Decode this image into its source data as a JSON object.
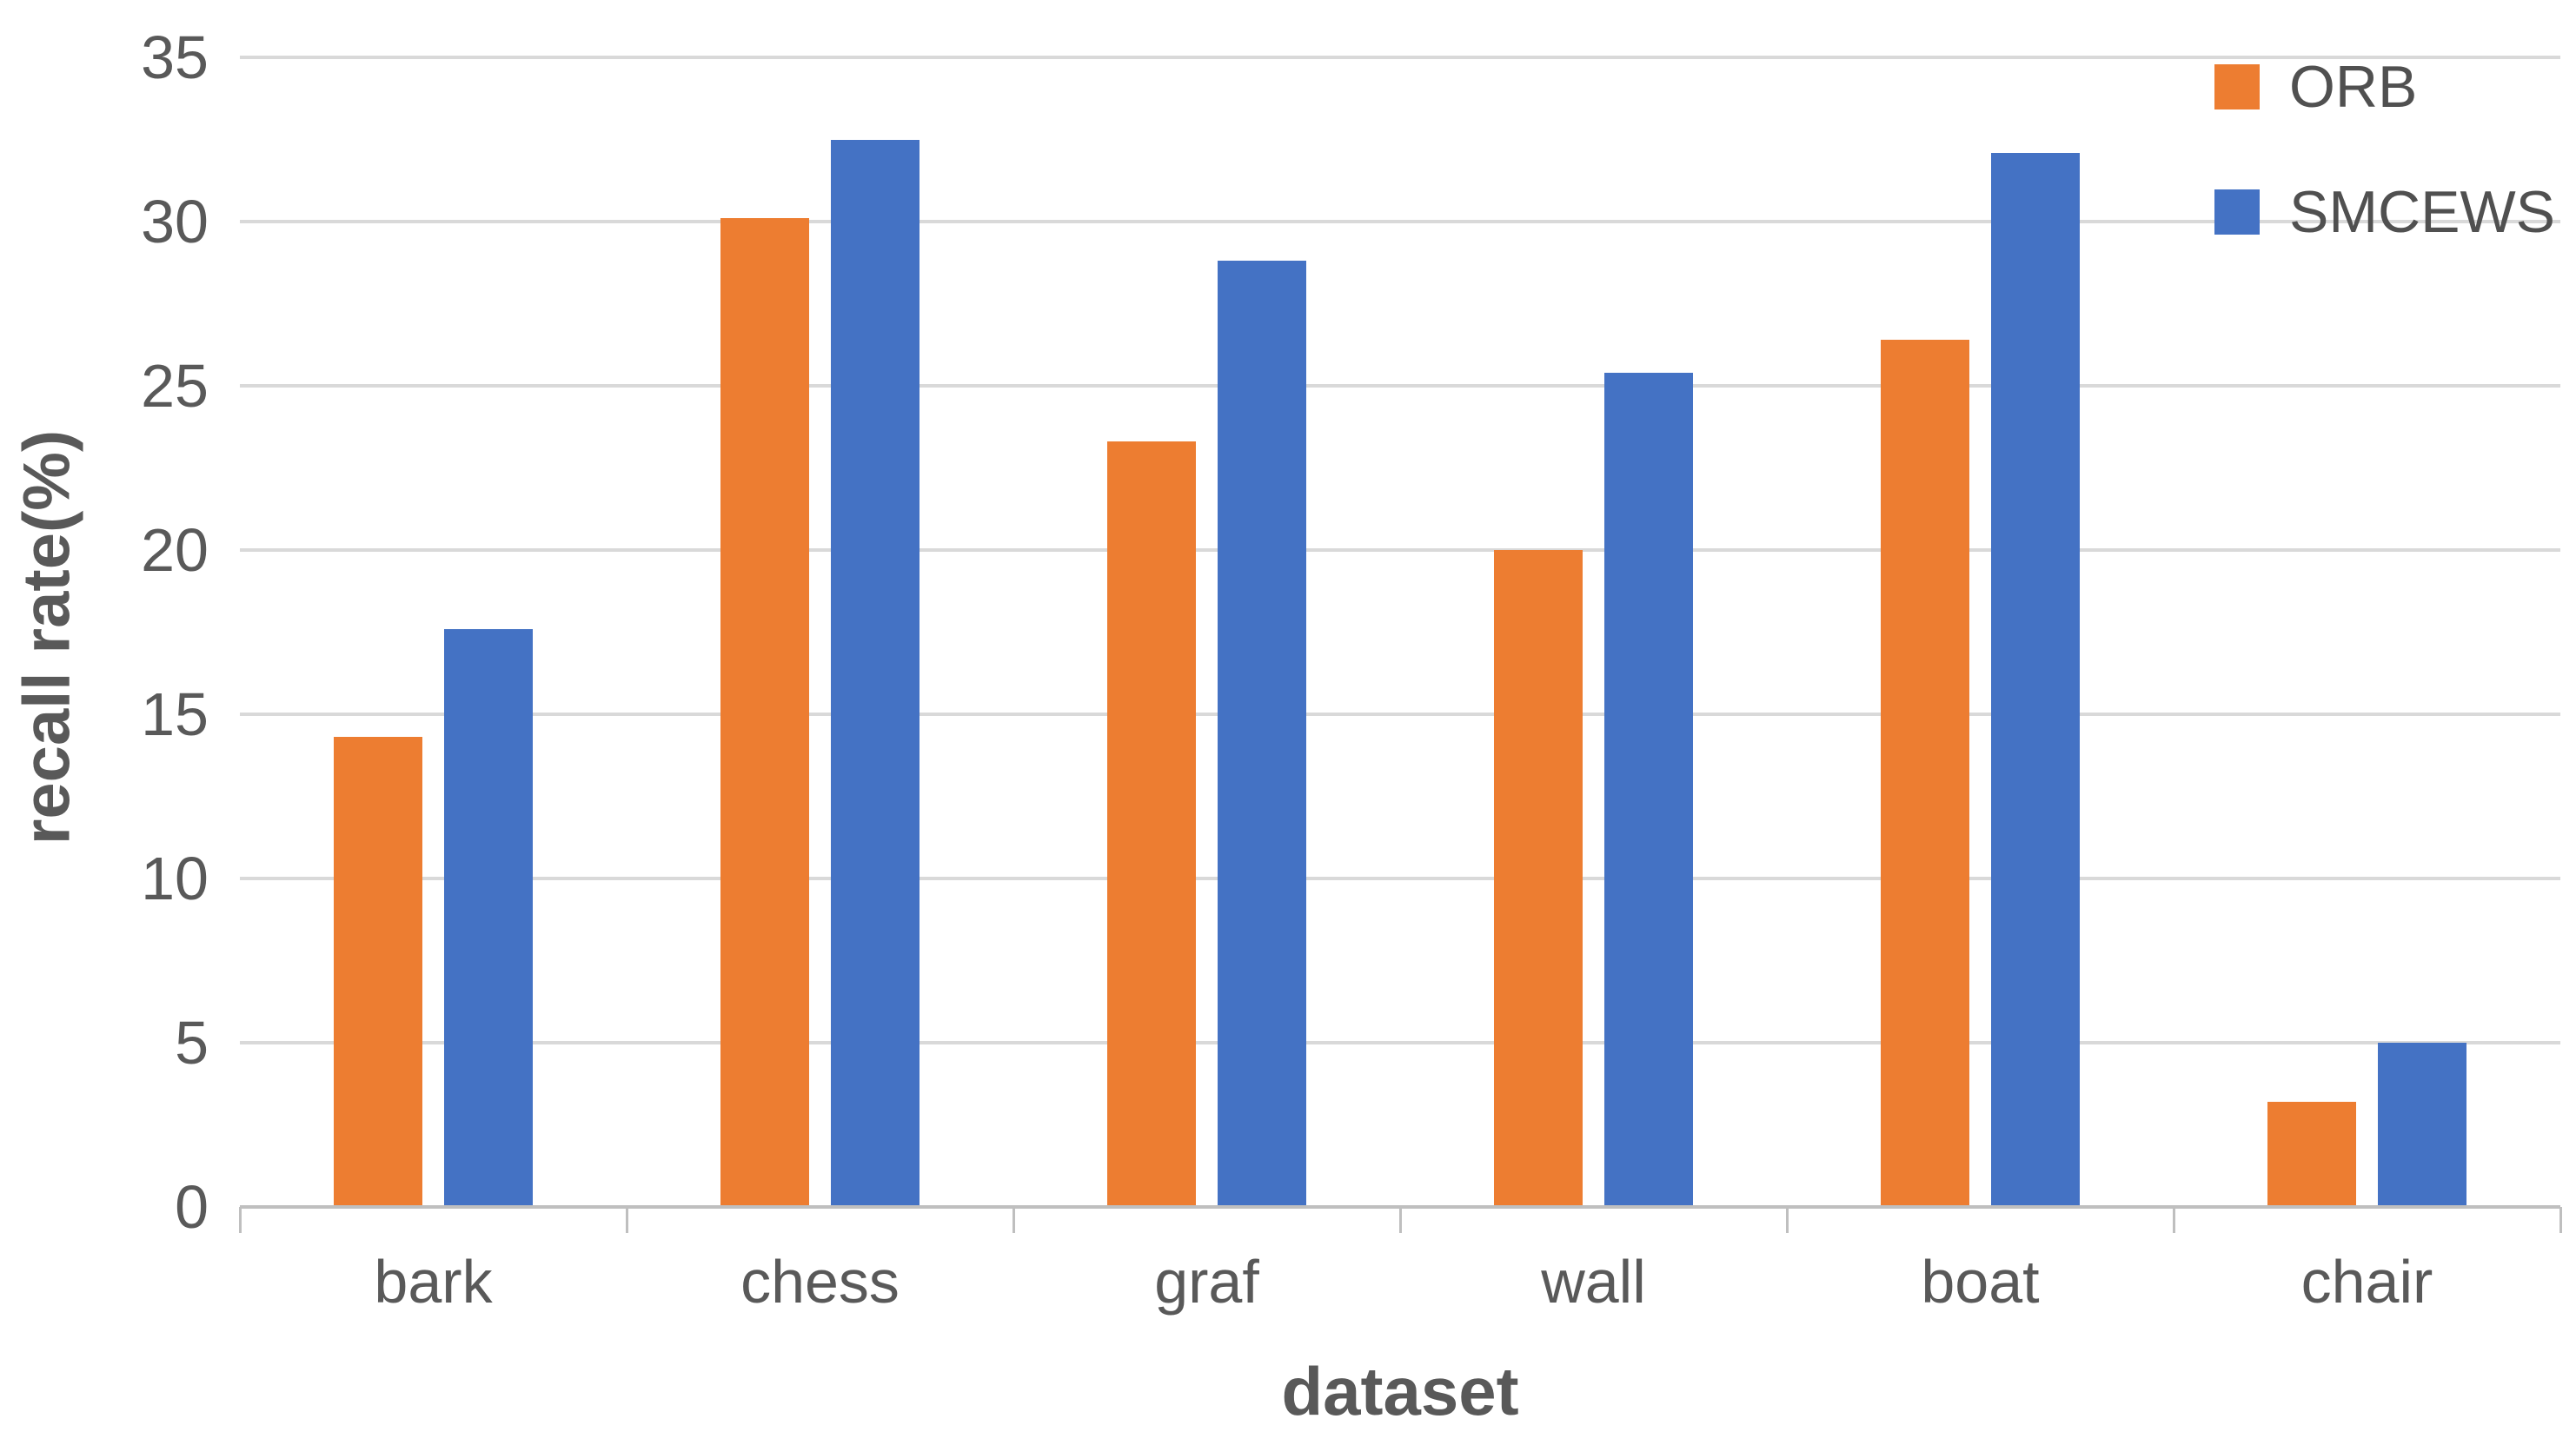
{
  "chart_data": {
    "type": "bar",
    "title": "",
    "xlabel": "dataset",
    "ylabel": "recall rate(%)",
    "categories": [
      "bark",
      "chess",
      "graf",
      "wall",
      "boat",
      "chair"
    ],
    "series": [
      {
        "name": "ORB",
        "color": "#ed7d31",
        "values": [
          14.3,
          30.1,
          23.3,
          20.0,
          26.4,
          3.2
        ]
      },
      {
        "name": "SMCEWS",
        "color": "#4472c4",
        "values": [
          17.6,
          32.5,
          28.8,
          25.4,
          32.1,
          5.0
        ]
      }
    ],
    "ylim": [
      0,
      35
    ],
    "yticks": [
      0,
      5,
      10,
      15,
      20,
      25,
      30,
      35
    ],
    "grid": true,
    "gridline_color": "#d9d9d9",
    "axis_line_color": "#bfbfbf",
    "text_color": "#595959",
    "legend_position": "top-right",
    "legend_labels": [
      "ORB",
      "SMCEWS"
    ]
  }
}
